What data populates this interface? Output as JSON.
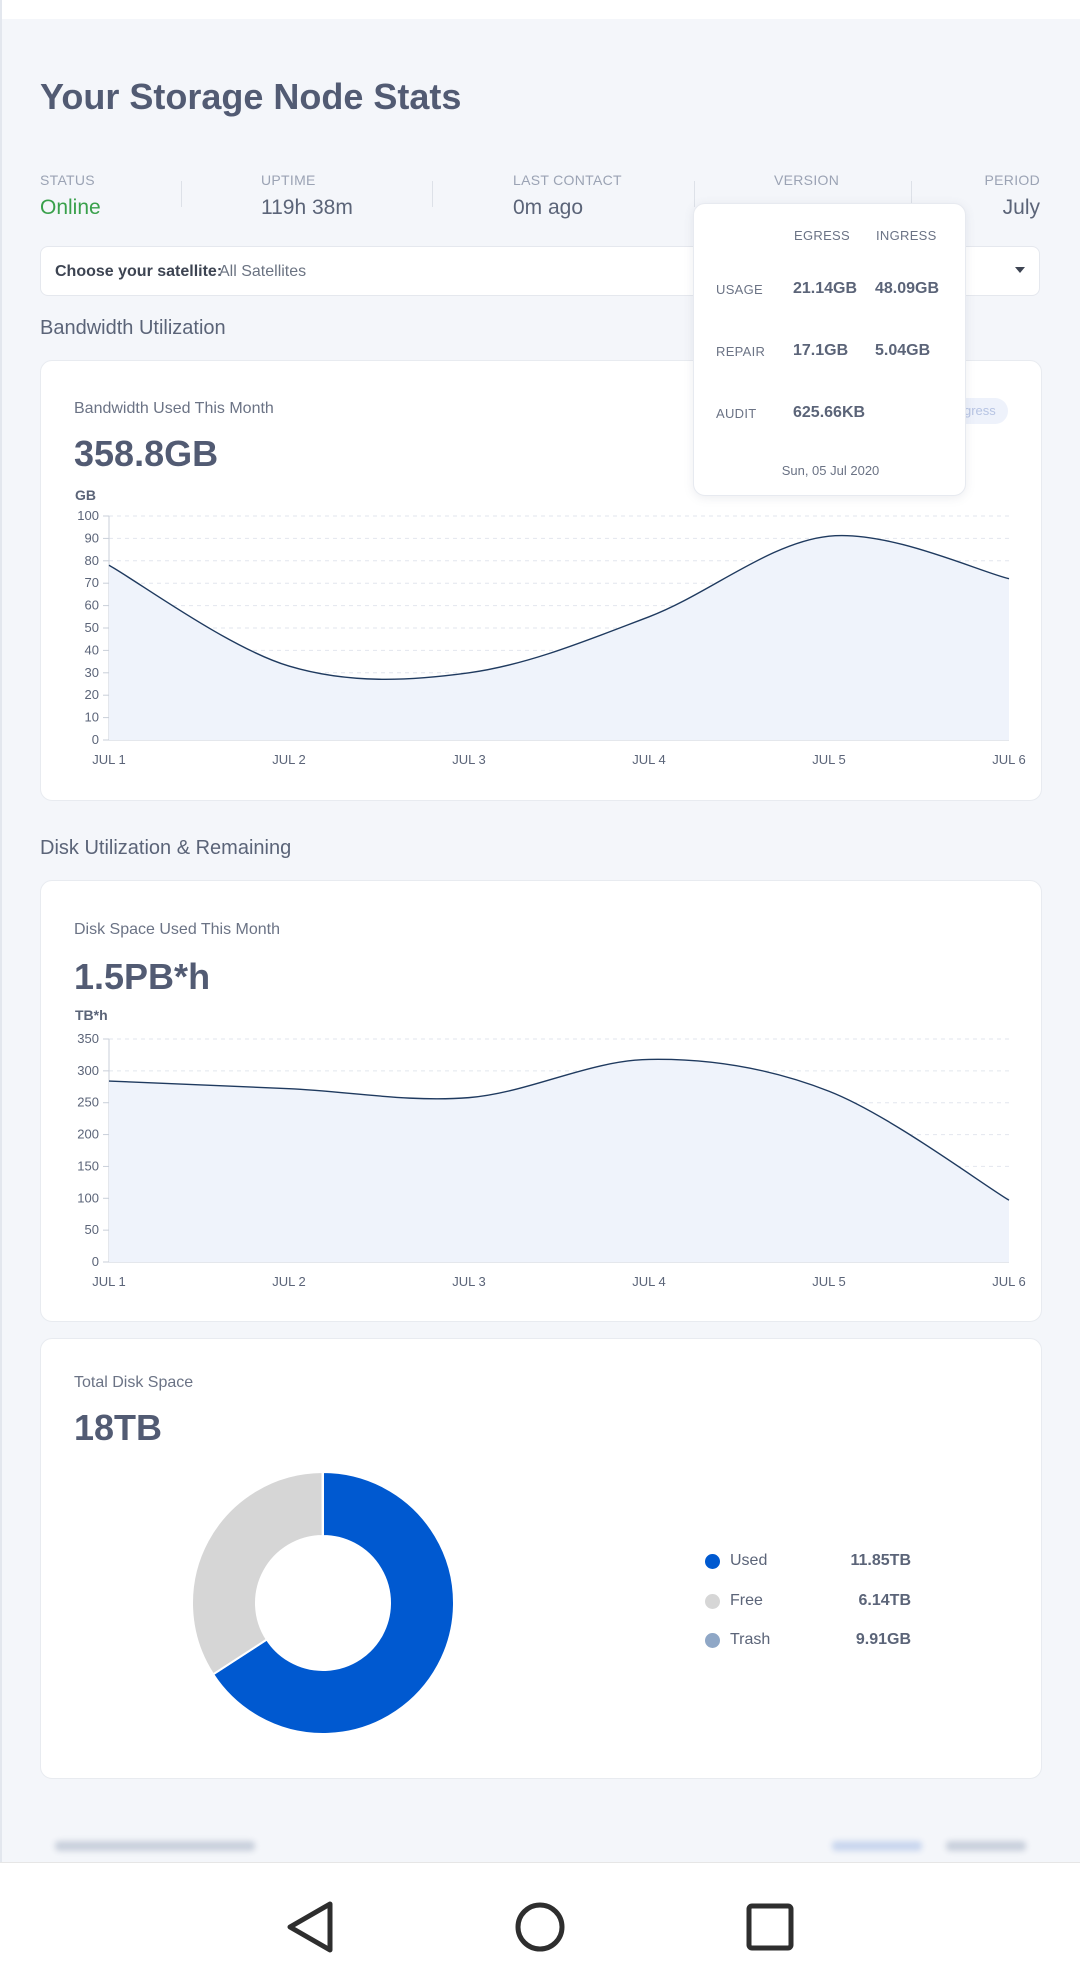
{
  "header": {
    "title": "Your Storage Node Stats"
  },
  "stats": {
    "status": {
      "label": "STATUS",
      "value": "Online"
    },
    "uptime": {
      "label": "UPTIME",
      "value": "119h 38m"
    },
    "last_contact": {
      "label": "LAST CONTACT",
      "value": "0m ago"
    },
    "version": {
      "label": "VERSION",
      "value": ""
    },
    "period": {
      "label": "PERIOD",
      "value": "July"
    }
  },
  "satellite": {
    "label": "Choose your satellite:",
    "value": "All Satellites"
  },
  "bandwidth": {
    "section_title": "Bandwidth Utilization",
    "card_title": "Bandwidth Used This Month",
    "total": "358.8GB",
    "legend_toggle": "gress",
    "tooltip": {
      "col_egress": "EGRESS",
      "col_ingress": "INGRESS",
      "rows": [
        {
          "label": "USAGE",
          "egress": "21.14GB",
          "ingress": "48.09GB"
        },
        {
          "label": "REPAIR",
          "egress": "17.1GB",
          "ingress": "5.04GB"
        },
        {
          "label": "AUDIT",
          "egress": "625.66KB",
          "ingress": ""
        }
      ],
      "date": "Sun, 05 Jul 2020"
    }
  },
  "disk": {
    "section_title": "Disk Utilization & Remaining",
    "card_title": "Disk Space Used This Month",
    "total": "1.5PB*h"
  },
  "total_disk": {
    "card_title": "Total Disk Space",
    "total": "18TB",
    "legend": [
      {
        "name": "Used",
        "value": "11.85TB",
        "color": "#0059d0"
      },
      {
        "name": "Free",
        "value": "6.14TB",
        "color": "#d6d6d6"
      },
      {
        "name": "Trash",
        "value": "9.91GB",
        "color": "#8fa7c6"
      }
    ]
  },
  "footer": {
    "left_text": "",
    "right_text": ""
  },
  "colors": {
    "accent": "#0059d0",
    "online": "#39a04b",
    "area_fill": "#eff3fb",
    "line": "#1f3a5f"
  },
  "chart_data": [
    {
      "type": "area",
      "title": "Bandwidth Used This Month",
      "ylabel": "GB",
      "categories": [
        "JUL 1",
        "JUL 2",
        "JUL 3",
        "JUL 4",
        "JUL 5",
        "JUL 6"
      ],
      "values": [
        78,
        33,
        30,
        55,
        91,
        72
      ],
      "yticks": [
        0,
        10,
        20,
        30,
        40,
        50,
        60,
        70,
        80,
        90,
        100
      ],
      "ylim": [
        0,
        100
      ]
    },
    {
      "type": "area",
      "title": "Disk Space Used This Month",
      "ylabel": "TB*h",
      "categories": [
        "JUL 1",
        "JUL 2",
        "JUL 3",
        "JUL 4",
        "JUL 5",
        "JUL 6"
      ],
      "values": [
        284,
        272,
        258,
        318,
        268,
        97
      ],
      "yticks": [
        0,
        50,
        100,
        150,
        200,
        250,
        300,
        350
      ],
      "ylim": [
        0,
        350
      ]
    },
    {
      "type": "pie",
      "title": "Total Disk Space",
      "labels": [
        "Used",
        "Free",
        "Trash"
      ],
      "values": [
        11.85,
        6.14,
        0.00991
      ],
      "colors": [
        "#0059d0",
        "#d6d6d6",
        "#8fa7c6"
      ]
    }
  ]
}
